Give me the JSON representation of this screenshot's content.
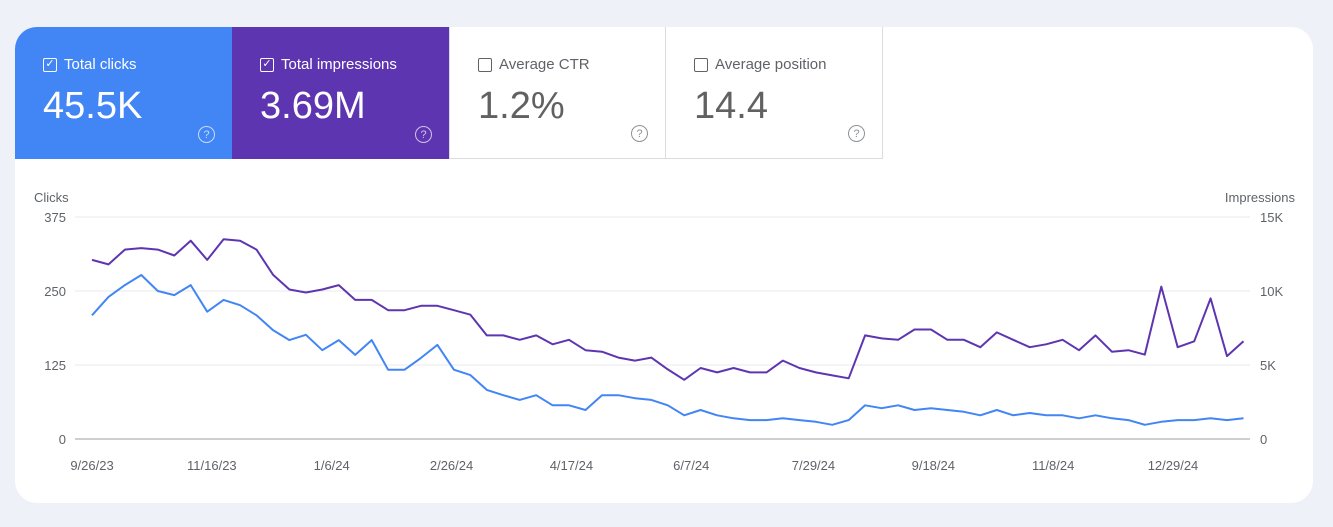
{
  "metrics": [
    {
      "label": "Total clicks",
      "value": "45.5K",
      "checked": true,
      "color": "#4285f4"
    },
    {
      "label": "Total impressions",
      "value": "3.69M",
      "checked": true,
      "color": "#5e35b1"
    },
    {
      "label": "Average CTR",
      "value": "1.2%",
      "checked": false
    },
    {
      "label": "Average position",
      "value": "14.4",
      "checked": false
    }
  ],
  "help_icon": "?",
  "check_glyph": "✓",
  "chart_data": {
    "type": "line",
    "left_axis": {
      "label": "Clicks",
      "ticks": [
        "0",
        "125",
        "250",
        "375"
      ],
      "range": [
        0,
        375
      ]
    },
    "right_axis": {
      "label": "Impressions",
      "ticks": [
        "0",
        "5K",
        "10K",
        "15K"
      ],
      "range": [
        0,
        15000
      ]
    },
    "x_ticks": [
      "9/26/23",
      "11/16/23",
      "1/6/24",
      "2/26/24",
      "4/17/24",
      "6/7/24",
      "7/29/24",
      "9/18/24",
      "11/8/24",
      "12/29/24"
    ],
    "x_range": [
      "9/26/23",
      "1/28/25"
    ],
    "grid": true,
    "x": [
      "9/26/23",
      "10/3/23",
      "10/10/23",
      "10/17/23",
      "10/24/23",
      "10/31/23",
      "11/7/23",
      "11/14/23",
      "11/21/23",
      "11/28/23",
      "12/5/23",
      "12/12/23",
      "12/19/23",
      "12/26/23",
      "1/2/24",
      "1/9/24",
      "1/16/24",
      "1/23/24",
      "1/30/24",
      "2/6/24",
      "2/13/24",
      "2/20/24",
      "2/27/24",
      "3/5/24",
      "3/12/24",
      "3/19/24",
      "3/26/24",
      "4/2/24",
      "4/9/24",
      "4/16/24",
      "4/23/24",
      "4/30/24",
      "5/7/24",
      "5/14/24",
      "5/21/24",
      "5/28/24",
      "6/4/24",
      "6/11/24",
      "6/18/24",
      "6/25/24",
      "7/2/24",
      "7/9/24",
      "7/16/24",
      "7/23/24",
      "7/30/24",
      "8/6/24",
      "8/13/24",
      "8/20/24",
      "8/27/24",
      "9/3/24",
      "9/10/24",
      "9/17/24",
      "9/24/24",
      "10/1/24",
      "10/8/24",
      "10/15/24",
      "10/22/24",
      "10/29/24",
      "11/5/24",
      "11/12/24",
      "11/19/24",
      "11/26/24",
      "12/3/24",
      "12/10/24",
      "12/17/24",
      "12/24/24",
      "12/31/24",
      "1/7/25",
      "1/14/25",
      "1/21/25",
      "1/28/25"
    ],
    "series": [
      {
        "name": "Clicks",
        "axis": "left",
        "color": "#4285f4",
        "values": [
          209,
          240,
          260,
          277,
          250,
          243,
          260,
          215,
          235,
          226,
          209,
          184,
          167,
          176,
          150,
          167,
          142,
          167,
          117,
          117,
          137,
          159,
          117,
          108,
          83,
          74,
          66,
          74,
          57,
          57,
          49,
          74,
          74,
          69,
          66,
          57,
          40,
          49,
          40,
          35,
          32,
          32,
          35,
          32,
          29,
          24,
          32,
          57,
          52,
          57,
          49,
          52,
          49,
          46,
          40,
          49,
          40,
          44,
          40,
          40,
          35,
          40,
          35,
          32,
          24,
          29,
          32,
          32,
          35,
          32,
          35
        ]
      },
      {
        "name": "Impressions",
        "axis": "right",
        "color": "#5e35b1",
        "values": [
          12100,
          11800,
          12800,
          12900,
          12800,
          12400,
          13400,
          12100,
          13500,
          13400,
          12800,
          11100,
          10100,
          9900,
          10100,
          10400,
          9400,
          9400,
          8700,
          8700,
          9000,
          9000,
          8700,
          8400,
          7000,
          7000,
          6700,
          7000,
          6400,
          6700,
          6000,
          5900,
          5500,
          5300,
          5500,
          4700,
          4000,
          4800,
          4500,
          4800,
          4500,
          4500,
          5300,
          4800,
          4500,
          4300,
          4100,
          7000,
          6800,
          6700,
          7400,
          7400,
          6700,
          6700,
          6200,
          7200,
          6700,
          6200,
          6400,
          6700,
          6000,
          7000,
          5900,
          6000,
          5700,
          10300,
          6200,
          6600,
          9500,
          5600,
          6600
        ]
      }
    ]
  }
}
